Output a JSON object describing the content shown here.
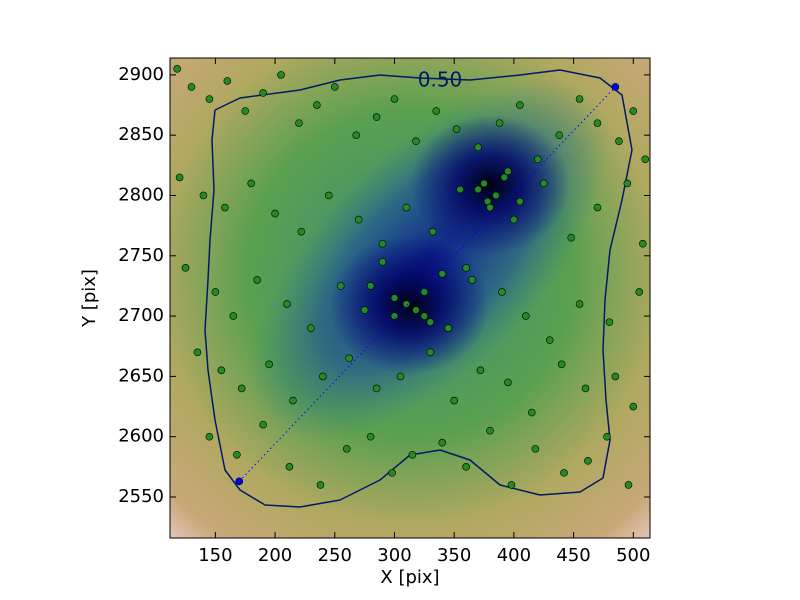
{
  "chart_data": {
    "type": "scatter",
    "xlabel": "X [pix]",
    "ylabel": "Y [pix]",
    "xlim": [
      112,
      514
    ],
    "ylim": [
      2516,
      2914
    ],
    "xticks": [
      150,
      200,
      250,
      300,
      350,
      400,
      450,
      500
    ],
    "yticks": [
      2550,
      2600,
      2650,
      2700,
      2750,
      2800,
      2850,
      2900
    ],
    "contour_label": "0.50",
    "series": [
      {
        "color": "#228b22",
        "marker": "circle",
        "x": [
          118,
          130,
          145,
          160,
          175,
          190,
          205,
          220,
          235,
          250,
          268,
          285,
          300,
          318,
          335,
          352,
          370,
          388,
          405,
          420,
          438,
          455,
          470,
          488,
          500,
          510,
          120,
          140,
          158,
          180,
          200,
          222,
          245,
          270,
          290,
          310,
          332,
          355,
          378,
          400,
          425,
          448,
          470,
          495,
          508,
          125,
          150,
          165,
          185,
          210,
          230,
          255,
          275,
          300,
          325,
          345,
          365,
          390,
          410,
          430,
          455,
          480,
          505,
          135,
          155,
          172,
          195,
          215,
          240,
          262,
          285,
          305,
          330,
          350,
          372,
          395,
          415,
          440,
          460,
          485,
          500,
          145,
          168,
          190,
          212,
          238,
          260,
          280,
          298,
          315,
          340,
          360,
          380,
          398,
          418,
          442,
          462,
          478,
          496,
          310,
          318,
          325,
          300,
          330,
          375,
          385,
          392,
          380,
          370,
          395,
          405,
          360,
          340,
          290,
          280
        ],
        "y": [
          2905,
          2890,
          2880,
          2895,
          2870,
          2885,
          2900,
          2860,
          2875,
          2890,
          2850,
          2865,
          2880,
          2845,
          2870,
          2855,
          2840,
          2860,
          2875,
          2830,
          2850,
          2880,
          2860,
          2845,
          2870,
          2830,
          2815,
          2800,
          2790,
          2810,
          2785,
          2770,
          2800,
          2780,
          2760,
          2790,
          2770,
          2805,
          2795,
          2780,
          2810,
          2765,
          2790,
          2810,
          2760,
          2740,
          2720,
          2700,
          2730,
          2710,
          2690,
          2725,
          2705,
          2715,
          2700,
          2690,
          2730,
          2720,
          2700,
          2680,
          2710,
          2695,
          2720,
          2670,
          2655,
          2640,
          2660,
          2630,
          2650,
          2665,
          2640,
          2650,
          2670,
          2630,
          2655,
          2645,
          2620,
          2660,
          2640,
          2650,
          2625,
          2600,
          2585,
          2610,
          2575,
          2560,
          2590,
          2600,
          2570,
          2585,
          2595,
          2575,
          2605,
          2560,
          2590,
          2570,
          2580,
          2600,
          2560,
          2710,
          2705,
          2720,
          2700,
          2695,
          2810,
          2800,
          2815,
          2790,
          2805,
          2820,
          2795,
          2740,
          2735,
          2745,
          2725
        ]
      },
      {
        "color": "#0000ff",
        "marker": "circle",
        "line": "dotted",
        "x": [
          170,
          485
        ],
        "y": [
          2563,
          2890
        ]
      }
    ]
  }
}
